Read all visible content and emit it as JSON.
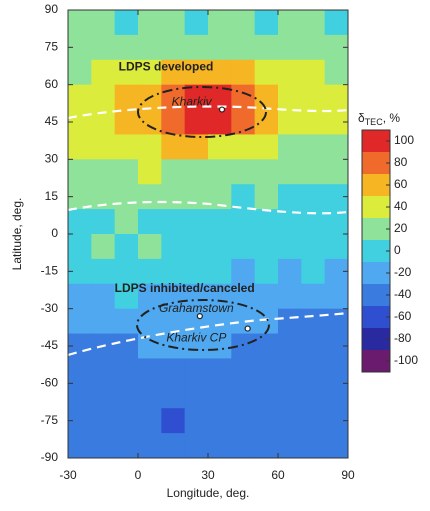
{
  "chart_data": {
    "type": "heatmap",
    "xlabel": "Longitude, deg.",
    "ylabel": "Latitude, deg.",
    "xlim": [
      -30,
      90
    ],
    "ylim": [
      -90,
      90
    ],
    "xticks": [
      -30,
      0,
      30,
      60,
      90
    ],
    "yticks": [
      90,
      75,
      60,
      45,
      30,
      15,
      0,
      -15,
      -30,
      -45,
      -60,
      -75,
      -90
    ],
    "xbins": [
      -30,
      -20,
      -10,
      0,
      10,
      20,
      30,
      40,
      50,
      60,
      70,
      80,
      90
    ],
    "ybins": [
      90,
      80,
      70,
      60,
      50,
      40,
      30,
      20,
      10,
      0,
      -10,
      -20,
      -30,
      -40,
      -50,
      -60,
      -70,
      -80,
      -90
    ],
    "z": [
      [
        10,
        10,
        0,
        10,
        10,
        0,
        10,
        10,
        0,
        10,
        10,
        0
      ],
      [
        10,
        20,
        10,
        20,
        20,
        10,
        20,
        20,
        10,
        20,
        10,
        10
      ],
      [
        20,
        30,
        30,
        40,
        50,
        60,
        60,
        50,
        40,
        30,
        30,
        20
      ],
      [
        40,
        40,
        50,
        60,
        80,
        90,
        90,
        80,
        60,
        40,
        40,
        40
      ],
      [
        40,
        40,
        50,
        60,
        80,
        90,
        90,
        80,
        50,
        40,
        30,
        30
      ],
      [
        30,
        30,
        40,
        40,
        50,
        50,
        40,
        40,
        30,
        20,
        20,
        20
      ],
      [
        20,
        20,
        20,
        30,
        20,
        20,
        20,
        20,
        10,
        10,
        10,
        10
      ],
      [
        10,
        10,
        20,
        10,
        20,
        10,
        10,
        0,
        10,
        0,
        0,
        0
      ],
      [
        0,
        0,
        10,
        0,
        0,
        0,
        -10,
        0,
        0,
        -10,
        0,
        0
      ],
      [
        0,
        10,
        0,
        10,
        0,
        -10,
        0,
        0,
        -10,
        0,
        -10,
        -10
      ],
      [
        -10,
        0,
        -10,
        0,
        -10,
        0,
        -10,
        -20,
        -10,
        -20,
        -10,
        -20
      ],
      [
        -20,
        -20,
        -10,
        -20,
        -20,
        -30,
        -20,
        -30,
        -30,
        -20,
        -30,
        -30
      ],
      [
        -20,
        -30,
        -30,
        -30,
        -20,
        -30,
        -30,
        -30,
        -30,
        -40,
        -40,
        -40
      ],
      [
        -40,
        -40,
        -40,
        -30,
        -30,
        -30,
        -30,
        -40,
        -40,
        -40,
        -40,
        -40
      ],
      [
        -40,
        -50,
        -40,
        -40,
        -40,
        -50,
        -40,
        -40,
        -50,
        -40,
        -40,
        -50
      ],
      [
        -40,
        -50,
        -50,
        -40,
        -50,
        -40,
        -50,
        -50,
        -40,
        -50,
        -40,
        -40
      ],
      [
        -50,
        -40,
        -50,
        -50,
        -60,
        -50,
        -40,
        -50,
        -50,
        -40,
        -50,
        -50
      ],
      [
        -40,
        -50,
        -40,
        -50,
        -40,
        -50,
        -50,
        -40,
        -50,
        -50,
        -40,
        -50
      ]
    ],
    "clim": [
      -110,
      110
    ],
    "colors": [
      "#6a1b6e",
      "#2a2aa0",
      "#2f4fd0",
      "#3a7be0",
      "#4fa8f0",
      "#40d0e0",
      "#8ee29a",
      "#dcec3c",
      "#f6b522",
      "#f06a2c",
      "#e02828"
    ],
    "cticks": [
      100,
      80,
      60,
      40,
      20,
      0,
      -20,
      -40,
      -60,
      -80,
      -100
    ],
    "colorbar_label": {
      "symbol": "δ",
      "subscript": "TEC",
      "suffix": ", %"
    },
    "annotations": [
      {
        "text": "LDPS developed",
        "x": 12,
        "y": 67,
        "style": "bold"
      },
      {
        "text": "Kharkiv",
        "x": 23,
        "y": 53,
        "style": "italic"
      },
      {
        "text": "LDPS inhibited/canceled",
        "x": 20,
        "y": -22,
        "style": "bold"
      },
      {
        "text": "Grahamstown",
        "x": 25,
        "y": -30,
        "style": "italic"
      },
      {
        "text": "Kharkiv CP",
        "x": 25,
        "y": -42,
        "style": "italic"
      }
    ],
    "points": [
      {
        "x": 36,
        "y": 50
      },
      {
        "x": 26.5,
        "y": -33
      },
      {
        "x": 47,
        "y": -38
      }
    ]
  }
}
